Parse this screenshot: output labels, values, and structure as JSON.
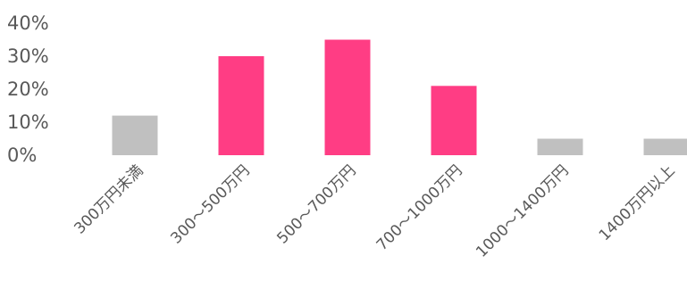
{
  "chart_data": {
    "type": "bar",
    "categories": [
      "300万円未満",
      "300～500万円",
      "500～700万円",
      "700～1000万円",
      "1000～1400万円",
      "1400万円以上"
    ],
    "values": [
      12,
      30,
      35,
      21,
      5,
      5
    ],
    "highlight": [
      false,
      true,
      true,
      true,
      false,
      false
    ],
    "colors": {
      "highlight": "#ff3d84",
      "default": "#c0c0c0"
    },
    "yticks": [
      "0%",
      "10%",
      "20%",
      "30%",
      "40%"
    ],
    "ytick_values": [
      0,
      10,
      20,
      30,
      40
    ],
    "ylim": [
      0,
      40
    ],
    "ylabel": "",
    "xlabel": "",
    "title": "",
    "grid": false,
    "legend": "none"
  }
}
